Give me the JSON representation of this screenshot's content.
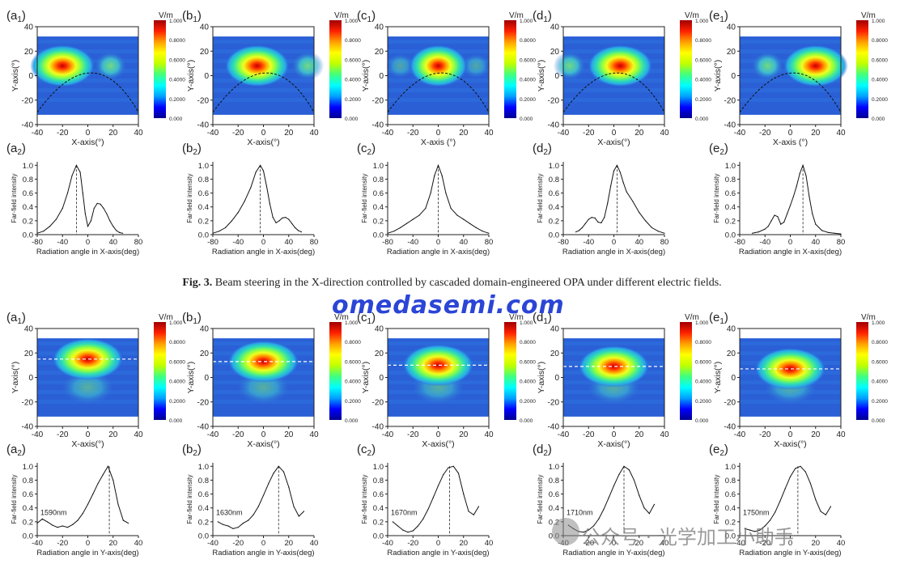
{
  "caption": {
    "label": "Fig. 3.",
    "text": "Beam steering in the X-direction controlled by cascaded domain-engineered OPA under different electric fields."
  },
  "watermarks": {
    "brand": "omedasemi.com",
    "account": "公众号 · 光学加工小助手"
  },
  "colorbar": {
    "unit": "V/m",
    "ticks": [
      "1.000",
      "0.8000",
      "0.6000",
      "0.4000",
      "0.2000",
      "0.000"
    ]
  },
  "colors": {
    "jet": [
      "#00008f",
      "#0000ff",
      "#00a0ff",
      "#00ffff",
      "#40ff80",
      "#c0ff00",
      "#ffff00",
      "#ffa000",
      "#ff2000",
      "#a00000"
    ]
  },
  "top_maps": [
    {
      "label": "(a",
      "sub": "1",
      "xlabel": "X-axis(°)",
      "x": [
        -40,
        -20,
        0,
        20,
        40
      ],
      "y": [
        40,
        20,
        0,
        -20,
        -40
      ]
    },
    {
      "label": "(b",
      "sub": "1",
      "xlabel": "X-axis(°)",
      "x": [
        -40,
        -20,
        0,
        20,
        40
      ],
      "y": [
        40,
        20,
        0,
        -20,
        -40
      ]
    },
    {
      "label": "(c",
      "sub": "1",
      "xlabel": "X-axis (°)",
      "x": [
        -40,
        -20,
        0,
        20,
        40
      ],
      "y": [
        40,
        20,
        0,
        -20,
        -40
      ]
    },
    {
      "label": "(d",
      "sub": "1",
      "xlabel": "X-axis(°)",
      "x": [
        -40,
        -20,
        0,
        20,
        40
      ],
      "y": [
        40,
        20,
        0,
        -20,
        -40
      ]
    },
    {
      "label": "(e",
      "sub": "1",
      "xlabel": "X-axis (°)",
      "x": [
        -40,
        -20,
        0,
        20,
        40
      ],
      "y": [
        40,
        20,
        0,
        -20,
        -40
      ]
    }
  ],
  "top_maps_ylabel": "Y-axis(°)",
  "chart_data": [
    {
      "type": "line",
      "id": "a2",
      "label": "(a",
      "sub": "2",
      "xlabel": "Radiation angle in X-axis(deg)",
      "ylabel": "Far-field intensity",
      "xlim": [
        -80,
        80
      ],
      "xticks": [
        -80,
        -40,
        0,
        40,
        80
      ],
      "ylim": [
        0,
        1.05
      ],
      "yticks": [
        "0.0",
        "0.2",
        "0.4",
        "0.6",
        "0.8",
        "1.0"
      ],
      "peak": -18,
      "x": [
        -80,
        -70,
        -60,
        -50,
        -40,
        -32,
        -25,
        -18,
        -12,
        -8,
        -4,
        0,
        5,
        10,
        15,
        20,
        25,
        30,
        35,
        40,
        45,
        50,
        55
      ],
      "y": [
        0.02,
        0.05,
        0.12,
        0.22,
        0.38,
        0.6,
        0.85,
        1.0,
        0.9,
        0.6,
        0.3,
        0.12,
        0.2,
        0.38,
        0.45,
        0.44,
        0.38,
        0.3,
        0.2,
        0.12,
        0.06,
        0.03,
        0.02
      ]
    },
    {
      "type": "line",
      "id": "b2",
      "label": "(b",
      "sub": "2",
      "xlabel": "Radiation angle in X-axis(deg)",
      "ylabel": "Far-field intensity",
      "xlim": [
        -80,
        80
      ],
      "xticks": [
        -80,
        -40,
        0,
        40,
        80
      ],
      "ylim": [
        0,
        1.05
      ],
      "yticks": [
        "0.0",
        "0.2",
        "0.4",
        "0.6",
        "0.8",
        "1.0"
      ],
      "peak": -5,
      "x": [
        -80,
        -70,
        -60,
        -50,
        -40,
        -30,
        -20,
        -12,
        -5,
        0,
        5,
        10,
        15,
        20,
        25,
        30,
        35,
        40,
        45,
        50,
        55,
        60
      ],
      "y": [
        0.02,
        0.05,
        0.1,
        0.2,
        0.32,
        0.48,
        0.68,
        0.9,
        1.0,
        0.92,
        0.7,
        0.45,
        0.25,
        0.17,
        0.2,
        0.24,
        0.25,
        0.22,
        0.16,
        0.1,
        0.06,
        0.04
      ]
    },
    {
      "type": "line",
      "id": "c2",
      "label": "(c",
      "sub": "2",
      "xlabel": "Radiation angle in X-axis(deg)",
      "ylabel": "Far-field intensity",
      "xlim": [
        -80,
        80
      ],
      "xticks": [
        -80,
        -40,
        0,
        40,
        80
      ],
      "ylim": [
        0,
        1.05
      ],
      "yticks": [
        "0.0",
        "0.2",
        "0.4",
        "0.6",
        "0.8",
        "1.0"
      ],
      "peak": 0,
      "x": [
        -80,
        -70,
        -60,
        -50,
        -40,
        -30,
        -20,
        -12,
        -6,
        0,
        6,
        12,
        20,
        30,
        40,
        50,
        60,
        70,
        80
      ],
      "y": [
        0.02,
        0.05,
        0.1,
        0.16,
        0.22,
        0.28,
        0.38,
        0.6,
        0.85,
        1.0,
        0.85,
        0.6,
        0.38,
        0.28,
        0.22,
        0.16,
        0.1,
        0.05,
        0.02
      ]
    },
    {
      "type": "line",
      "id": "d2",
      "label": "(d",
      "sub": "2",
      "xlabel": "Radiation angle in X-axis(deg)",
      "ylabel": "Far-field intensity",
      "xlim": [
        -80,
        80
      ],
      "xticks": [
        -80,
        -40,
        0,
        40,
        80
      ],
      "ylim": [
        0,
        1.05
      ],
      "yticks": [
        "0.0",
        "0.2",
        "0.4",
        "0.6",
        "0.8",
        "1.0"
      ],
      "peak": 5,
      "x": [
        -60,
        -55,
        -50,
        -45,
        -40,
        -35,
        -30,
        -25,
        -20,
        -15,
        -10,
        -5,
        0,
        5,
        10,
        15,
        20,
        30,
        40,
        50,
        60,
        70,
        80
      ],
      "y": [
        0.04,
        0.06,
        0.1,
        0.16,
        0.22,
        0.25,
        0.24,
        0.18,
        0.17,
        0.25,
        0.45,
        0.7,
        0.92,
        1.0,
        0.9,
        0.75,
        0.62,
        0.48,
        0.32,
        0.2,
        0.1,
        0.05,
        0.02
      ]
    },
    {
      "type": "line",
      "id": "e2",
      "label": "(e",
      "sub": "2",
      "xlabel": "Radiation angle in X-axis(deg)",
      "ylabel": "Far-field intensity",
      "xlim": [
        -80,
        80
      ],
      "xticks": [
        -80,
        -40,
        0,
        40,
        80
      ],
      "ylim": [
        0,
        1.05
      ],
      "yticks": [
        "0.0",
        "0.2",
        "0.4",
        "0.6",
        "0.8",
        "1.0"
      ],
      "peak": 20,
      "x": [
        -60,
        -50,
        -40,
        -35,
        -30,
        -25,
        -20,
        -15,
        -10,
        -5,
        0,
        5,
        10,
        15,
        20,
        25,
        30,
        35,
        40,
        50,
        60,
        70,
        80
      ],
      "y": [
        0.02,
        0.04,
        0.08,
        0.12,
        0.2,
        0.28,
        0.26,
        0.15,
        0.18,
        0.3,
        0.42,
        0.55,
        0.7,
        0.88,
        1.0,
        0.85,
        0.55,
        0.3,
        0.15,
        0.06,
        0.03,
        0.02,
        0.01
      ]
    },
    {
      "type": "line",
      "id": "a2y",
      "label": "(a",
      "sub": "2",
      "xlabel": "Radiation angle in Y-axis(deg)",
      "ylabel": "Far-field intensity",
      "annotation": "1590nm",
      "xlim": [
        -40,
        40
      ],
      "xticks": [
        -40,
        -20,
        0,
        20,
        40
      ],
      "ylim": [
        0,
        1.05
      ],
      "yticks": [
        "0.0",
        "0.2",
        "0.4",
        "0.6",
        "0.8",
        "1.0"
      ],
      "peak": 17,
      "x": [
        -40,
        -36,
        -32,
        -28,
        -24,
        -20,
        -16,
        -12,
        -8,
        -4,
        0,
        4,
        8,
        12,
        16,
        20,
        24,
        28,
        32
      ],
      "y": [
        0.18,
        0.24,
        0.2,
        0.15,
        0.12,
        0.14,
        0.12,
        0.16,
        0.22,
        0.32,
        0.45,
        0.6,
        0.75,
        0.88,
        1.0,
        0.8,
        0.45,
        0.22,
        0.18
      ]
    },
    {
      "type": "line",
      "id": "b2y",
      "label": "(b",
      "sub": "2",
      "xlabel": "Radiation angle in Y-axis(deg)",
      "ylabel": "Far-field intensity",
      "annotation": "1630nm",
      "xlim": [
        -40,
        40
      ],
      "xticks": [
        -40,
        -20,
        0,
        20,
        40
      ],
      "ylim": [
        0,
        1.05
      ],
      "yticks": [
        "0.0",
        "0.2",
        "0.4",
        "0.6",
        "0.8",
        "1.0"
      ],
      "peak": 12,
      "x": [
        -36,
        -32,
        -28,
        -24,
        -20,
        -16,
        -12,
        -8,
        -4,
        0,
        4,
        8,
        12,
        16,
        20,
        24,
        28,
        32
      ],
      "y": [
        0.2,
        0.16,
        0.14,
        0.1,
        0.12,
        0.18,
        0.22,
        0.3,
        0.42,
        0.58,
        0.75,
        0.9,
        1.0,
        0.92,
        0.7,
        0.42,
        0.28,
        0.35
      ]
    },
    {
      "type": "line",
      "id": "c2y",
      "label": "(c",
      "sub": "2",
      "xlabel": "Radiation angle in Y-axis(deg)",
      "ylabel": "Far-field intensity",
      "annotation": "1670nm",
      "xlim": [
        -40,
        40
      ],
      "xticks": [
        -40,
        -20,
        0,
        20,
        40
      ],
      "ylim": [
        0,
        1.05
      ],
      "yticks": [
        "0.0",
        "0.2",
        "0.4",
        "0.6",
        "0.8",
        "1.0"
      ],
      "peak": 9,
      "x": [
        -36,
        -32,
        -28,
        -24,
        -20,
        -16,
        -12,
        -8,
        -4,
        0,
        4,
        8,
        12,
        16,
        20,
        24,
        28,
        32
      ],
      "y": [
        0.2,
        0.14,
        0.08,
        0.05,
        0.07,
        0.14,
        0.24,
        0.38,
        0.55,
        0.72,
        0.88,
        0.98,
        1.0,
        0.9,
        0.6,
        0.35,
        0.3,
        0.42
      ]
    },
    {
      "type": "line",
      "id": "d2y",
      "label": "(d",
      "sub": "2",
      "xlabel": "Radiation angle in Y-axis(deg)",
      "ylabel": "Far-field intensity",
      "annotation": "1710nm",
      "xlim": [
        -40,
        40
      ],
      "xticks": [
        -40,
        -20,
        0,
        20,
        40
      ],
      "ylim": [
        0,
        1.05
      ],
      "yticks": [
        "0.0",
        "0.2",
        "0.4",
        "0.6",
        "0.8",
        "1.0"
      ],
      "peak": 8,
      "x": [
        -36,
        -32,
        -28,
        -24,
        -20,
        -16,
        -12,
        -8,
        -4,
        0,
        4,
        8,
        12,
        16,
        20,
        24,
        28,
        32
      ],
      "y": [
        0.15,
        0.1,
        0.06,
        0.05,
        0.08,
        0.14,
        0.24,
        0.38,
        0.55,
        0.72,
        0.88,
        1.0,
        0.95,
        0.8,
        0.58,
        0.4,
        0.32,
        0.45
      ]
    },
    {
      "type": "line",
      "id": "e2y",
      "label": "(e",
      "sub": "2",
      "xlabel": "Radiation angle in Y-axis(deg)",
      "ylabel": "Far-field intensity",
      "annotation": "1750nm",
      "xlim": [
        -40,
        40
      ],
      "xticks": [
        -40,
        -20,
        0,
        20,
        40
      ],
      "ylim": [
        0,
        1.05
      ],
      "yticks": [
        "0.0",
        "0.2",
        "0.4",
        "0.6",
        "0.8",
        "1.0"
      ],
      "peak": 6,
      "x": [
        -36,
        -32,
        -28,
        -24,
        -20,
        -16,
        -12,
        -8,
        -4,
        0,
        4,
        8,
        12,
        16,
        20,
        24,
        28,
        32
      ],
      "y": [
        0.1,
        0.08,
        0.06,
        0.08,
        0.14,
        0.22,
        0.34,
        0.5,
        0.68,
        0.85,
        0.97,
        1.0,
        0.92,
        0.75,
        0.52,
        0.35,
        0.3,
        0.42
      ]
    }
  ],
  "bottom_maps": [
    {
      "label": "(a",
      "sub": "1",
      "xlabel": "X-axis(°)",
      "x": [
        -40,
        -20,
        0,
        20,
        40
      ],
      "y": [
        40,
        20,
        0,
        -20,
        -40
      ]
    },
    {
      "label": "(b",
      "sub": "1",
      "xlabel": "X-axis(°)",
      "x": [
        -40,
        -20,
        0,
        20,
        40
      ],
      "y": [
        40,
        20,
        0,
        -20,
        -40
      ]
    },
    {
      "label": "(c",
      "sub": "1",
      "xlabel": "X-axis(°)",
      "x": [
        -40,
        -20,
        0,
        20,
        40
      ],
      "y": [
        40,
        20,
        0,
        -20,
        -40
      ]
    },
    {
      "label": "(d",
      "sub": "1",
      "xlabel": "X-axis(°)",
      "x": [
        -40,
        -20,
        0,
        20,
        40
      ],
      "y": [
        40,
        20,
        0,
        -20,
        -40
      ]
    },
    {
      "label": "(e",
      "sub": "1",
      "xlabel": "X-axis(°)",
      "x": [
        -40,
        -20,
        0,
        20,
        40
      ],
      "y": [
        40,
        20,
        0,
        -20,
        -40
      ]
    }
  ],
  "bottom_maps_ylabel": "Y-axis(°)"
}
